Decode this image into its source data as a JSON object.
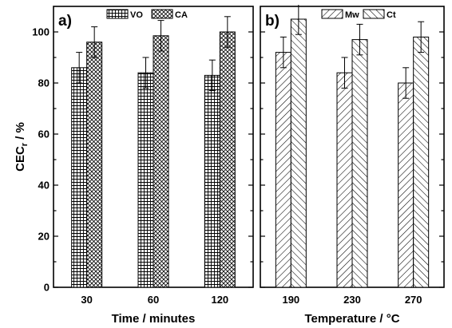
{
  "chart_data": [
    {
      "type": "bar",
      "panel_label": "a)",
      "categories": [
        "30",
        "60",
        "120"
      ],
      "series": [
        {
          "name": "VO",
          "pattern": "grid",
          "values": [
            86,
            84,
            83
          ],
          "errors": [
            6,
            6,
            6
          ]
        },
        {
          "name": "CA",
          "pattern": "crosshatch",
          "values": [
            96,
            98.5,
            100
          ],
          "errors": [
            6,
            6,
            6
          ]
        }
      ],
      "xlabel": "Time / minutes",
      "ylabel": "CEC",
      "ylabel_subscript": "r",
      "ylabel_suffix": " / %",
      "ylim": [
        0,
        110
      ],
      "yticks": [
        "0",
        "20",
        "40",
        "60",
        "80",
        "100"
      ],
      "legend_position": "top-center"
    },
    {
      "type": "bar",
      "panel_label": "b)",
      "categories": [
        "190",
        "230",
        "270"
      ],
      "series": [
        {
          "name": "Mw",
          "pattern": "forward-diagonal",
          "values": [
            92,
            84,
            80
          ],
          "errors": [
            6,
            6,
            6
          ]
        },
        {
          "name": "Ct",
          "pattern": "backward-diagonal",
          "values": [
            105,
            97,
            98
          ],
          "errors": [
            6,
            6,
            6
          ]
        }
      ],
      "xlabel": "Temperature / °C",
      "ylim": [
        0,
        110
      ],
      "legend_position": "top-center"
    }
  ],
  "colors": {
    "bar_fill": "#ffffff",
    "bar_pattern": "#000000",
    "axis": "#000000"
  }
}
